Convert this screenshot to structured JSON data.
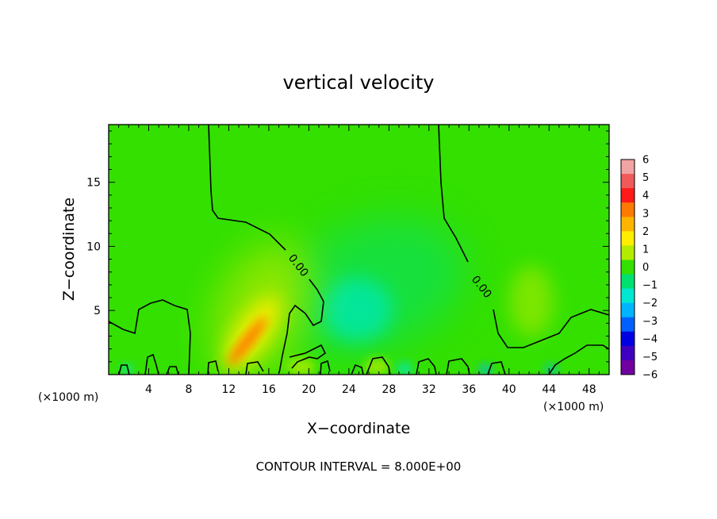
{
  "chart_data": {
    "type": "heatmap",
    "title": "vertical velocity",
    "xlabel": "X−coordinate",
    "ylabel": "Z−coordinate",
    "x_unit_left": "(×1000 m)",
    "x_unit_right": "(×1000 m)",
    "footer": "CONTOUR INTERVAL = 8.000E+00",
    "xlim": [
      0,
      50
    ],
    "ylim": [
      0,
      19.5
    ],
    "x_ticks": [
      "4",
      "8",
      "12",
      "16",
      "20",
      "24",
      "28",
      "32",
      "36",
      "40",
      "44",
      "48"
    ],
    "y_ticks": [
      "5",
      "10",
      "15"
    ],
    "colorbar": {
      "range": [
        -6,
        6
      ],
      "labels": [
        "6",
        "5",
        "4",
        "3",
        "2",
        "1",
        "0",
        "−1",
        "−2",
        "−3",
        "−4",
        "−5",
        "−6"
      ],
      "colors": [
        "#f2a3a3",
        "#f05a5a",
        "#ff1a1a",
        "#ff7a00",
        "#ffb400",
        "#ffee00",
        "#b4ec00",
        "#33e000",
        "#00e070",
        "#00e8d0",
        "#00b4ff",
        "#0060ff",
        "#0000e0",
        "#4000c0",
        "#7000a0"
      ]
    },
    "contour_labels": [
      "0.00",
      "0.00"
    ],
    "contour_level": 0.0
  }
}
